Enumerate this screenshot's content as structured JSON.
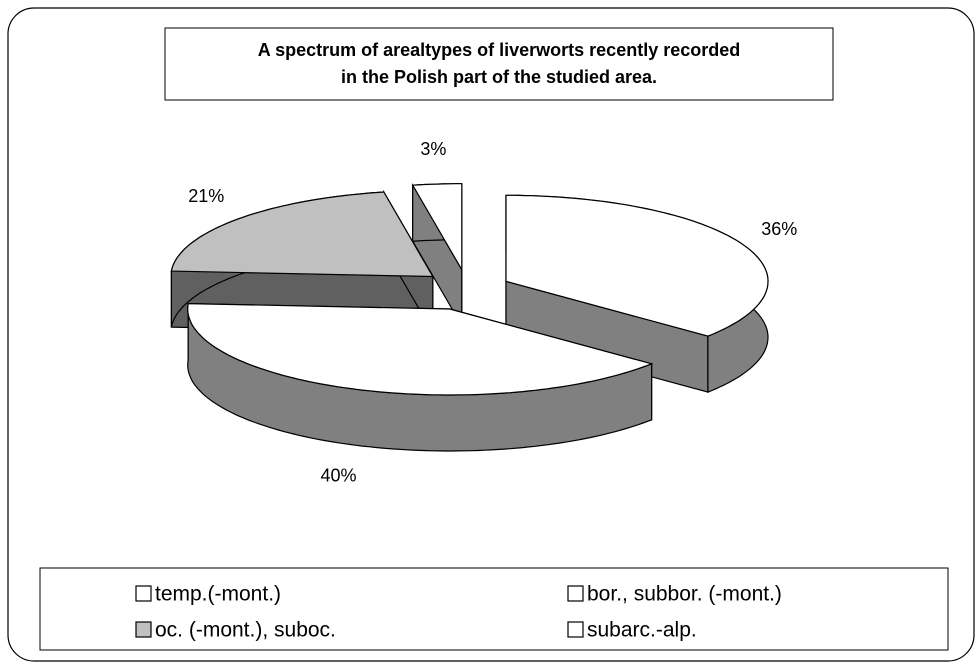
{
  "chart_data": {
    "type": "pie",
    "title": [
      "A spectrum of arealtypes of liverworts recently recorded",
      "in the Polish part of the studied area."
    ],
    "categories": [
      "temp.(-mont.)",
      "bor., subbor. (-mont.)",
      "oc. (-mont.), suboc.",
      "subarc.-alp."
    ],
    "values": [
      36,
      40,
      21,
      3
    ],
    "value_labels": [
      "36%",
      "40%",
      "21%",
      "3%"
    ],
    "colors": [
      "#ffffff",
      "#ffffff",
      "#c0c0c0",
      "#ffffff"
    ],
    "legend": "bottom"
  }
}
